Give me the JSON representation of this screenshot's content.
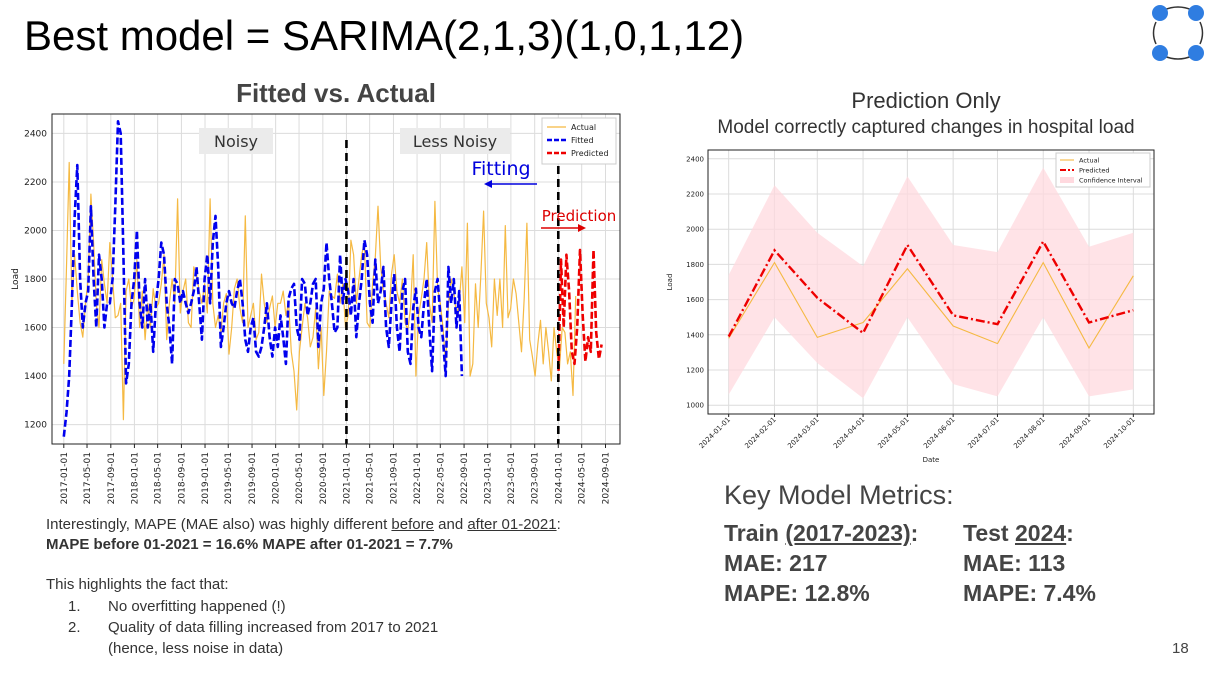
{
  "slide": {
    "title": "Best model = SARIMA(2,1,3)(1,0,1,12)",
    "page_number": "18"
  },
  "left_chart": {
    "title": "Fitted vs. Actual",
    "ylabel": "Load",
    "legend": [
      "Actual",
      "Fitted",
      "Predicted"
    ],
    "annotations": {
      "noisy": "Noisy",
      "less_noisy": "Less Noisy",
      "fitting": "Fitting",
      "prediction": "Prediction"
    }
  },
  "right_chart": {
    "title": "Prediction Only",
    "subtitle": "Model correctly captured changes in hospital load",
    "xlabel": "Date",
    "ylabel": "Load",
    "legend": [
      "Actual",
      "Predicted",
      "Confidence Interval"
    ]
  },
  "notes": {
    "line1_pre": "Interestingly, MAPE (MAE also) was highly different ",
    "line1_before": "before",
    "line1_mid": " and ",
    "line1_after": "after 01-2021",
    "line1_end": ":",
    "line2": "MAPE before 01-2021 = 16.6% MAPE after 01-2021 = 7.7%",
    "line4": "This highlights the fact that:",
    "items": [
      {
        "num": "1.",
        "text": "No overfitting happened (!)"
      },
      {
        "num": "2.",
        "text": "Quality of data filling increased from 2017 to 2021"
      }
    ],
    "item2_cont": "(hence, less noise in data)"
  },
  "metrics": {
    "heading": "Key Model Metrics:",
    "train": {
      "label_pre": "Train ",
      "label_period": "(2017-2023)",
      "label_end": ":",
      "mae": "MAE: 217",
      "mape": "MAPE: 12.8%"
    },
    "test": {
      "label_pre": "Test ",
      "label_period": "2024",
      "label_end": ":",
      "mae": "MAE: 113",
      "mape": "MAPE: 7.4%"
    }
  },
  "chart_data": [
    {
      "id": "fitted_vs_actual",
      "type": "line",
      "title": "Fitted vs. Actual",
      "xlabel": "",
      "ylabel": "Load",
      "ylim": [
        1120,
        2480
      ],
      "x_range": [
        "2016-11-01",
        "2024-11-15"
      ],
      "xticks": [
        "2017-01-01",
        "2017-05-01",
        "2017-09-01",
        "2018-01-01",
        "2018-05-01",
        "2018-09-01",
        "2019-01-01",
        "2019-05-01",
        "2019-09-01",
        "2020-01-01",
        "2020-05-01",
        "2020-09-01",
        "2021-01-01",
        "2021-05-01",
        "2021-09-01",
        "2022-01-01",
        "2022-05-01",
        "2022-09-01",
        "2023-01-01",
        "2023-05-01",
        "2023-09-01",
        "2024-01-01",
        "2024-05-01",
        "2024-09-01"
      ],
      "yticks": [
        1200,
        1400,
        1600,
        1800,
        2000,
        2200,
        2400
      ],
      "grid": true,
      "legend_position": "top-right",
      "vertical_lines": [
        "2021-01-01",
        "2024-01-01"
      ],
      "series": [
        {
          "name": "Actual",
          "color": "#f5b942",
          "style": "solid",
          "start": "2017-01-01",
          "step_days": 14,
          "values": [
            1450,
            1850,
            2280,
            1700,
            1900,
            1750,
            1620,
            1560,
            1700,
            1800,
            2150,
            1950,
            1700,
            1600,
            1880,
            1780,
            1700,
            1950,
            1800,
            1640,
            1650,
            1700,
            1220,
            1750,
            1800,
            1680,
            1720,
            1880,
            1600,
            1750,
            1550,
            1700,
            1600,
            1760,
            1680,
            1700,
            1780,
            1900,
            1550,
            1700,
            1800,
            1700,
            2130,
            1660,
            1750,
            1800,
            1620,
            1600,
            1850,
            1820,
            1750,
            1700,
            1780,
            1660,
            2130,
            1700,
            1600,
            1650,
            1580,
            1700,
            1740,
            1490,
            1600,
            1760,
            1800,
            1680,
            1620,
            2060,
            1600,
            1650,
            1700,
            1550,
            1580,
            1820,
            1700,
            1620,
            1680,
            1730,
            1600,
            1700,
            1700,
            1750,
            1650,
            1700,
            1500,
            1420,
            1260,
            1500,
            1600,
            1700,
            1640,
            1520,
            1560,
            1680,
            1430,
            1600,
            1320,
            1500,
            1750,
            1730,
            1720,
            1820,
            1700,
            1780,
            1600,
            1650,
            1960,
            1900,
            1700,
            1800,
            1900,
            1950,
            1620,
            1600,
            1780,
            1890,
            2100,
            1850,
            1750,
            1700,
            1640,
            1820,
            1900,
            1750,
            1700,
            1800,
            1620,
            1590,
            1680,
            1900,
            1400,
            1650,
            1720,
            1800,
            1950,
            1700,
            1620,
            2120,
            1760,
            1700,
            1600,
            1450,
            1700,
            1800,
            1750,
            1650,
            1700,
            1850,
            1620,
            2030,
            1400,
            1450,
            1780,
            1600,
            1820,
            2080,
            1700,
            1640,
            1520,
            1800,
            1650,
            1800,
            1600,
            2020,
            1640,
            1680,
            1800,
            1740,
            1620,
            1500,
            1720,
            2030,
            1550,
            1480,
            1400,
            1530,
            1630,
            1450,
            1600,
            1500,
            1380,
            1600,
            1500,
            1430,
            1600,
            1580,
            1450,
            1500,
            1320,
            1730
          ]
        },
        {
          "name": "Fitted",
          "color": "#0000ee",
          "style": "dashed",
          "start": "2017-01-01",
          "step_days": 14,
          "values": [
            1150,
            1250,
            1400,
            1700,
            2050,
            2270,
            1800,
            1600,
            1700,
            1750,
            2100,
            1800,
            1600,
            1900,
            1800,
            1600,
            1700,
            1700,
            1800,
            2100,
            2450,
            2400,
            1900,
            1370,
            1450,
            1700,
            1800,
            2000,
            1700,
            1600,
            1800,
            1600,
            1700,
            1500,
            1700,
            1800,
            1950,
            1900,
            1700,
            1600,
            1450,
            1800,
            1780,
            1700,
            1750,
            1700,
            1660,
            1700,
            1750,
            1850,
            1700,
            1550,
            1800,
            1900,
            1700,
            1950,
            2060,
            1850,
            1520,
            1600,
            1700,
            1750,
            1700,
            1680,
            1750,
            1800,
            1700,
            1550,
            1500,
            1600,
            1640,
            1500,
            1480,
            1520,
            1600,
            1700,
            1560,
            1480,
            1600,
            1520,
            1650,
            1560,
            1450,
            1720,
            1760,
            1780,
            1600,
            1550,
            1800,
            1780,
            1650,
            1700,
            1780,
            1800,
            1520,
            1700,
            1760,
            1950,
            1800,
            1700,
            1580,
            1600,
            1900,
            1700,
            1800,
            1750,
            1650,
            1800,
            1560,
            1700,
            1800,
            1960,
            1900,
            1700,
            1620,
            1880,
            1700,
            1750,
            1850,
            1600,
            1520,
            1700,
            1820,
            1600,
            1500,
            1750,
            1800,
            1500,
            1450,
            1680,
            1760,
            1600,
            1560,
            1700,
            1800,
            1590,
            1420,
            1750,
            1800,
            1650,
            1550,
            1400,
            1850,
            1700,
            1800,
            1600,
            1750,
            1400
          ]
        },
        {
          "name": "Predicted",
          "color": "#ee0000",
          "style": "dashed",
          "start": "2024-01-01",
          "step_days": 14,
          "values": [
            1380,
            1880,
            1600,
            1900,
            1750,
            1500,
            1450,
            1600,
            1920,
            1650,
            1460,
            1560,
            1500,
            1920,
            1580,
            1470,
            1530
          ]
        }
      ]
    },
    {
      "id": "prediction_only",
      "type": "line",
      "title": "Prediction Only",
      "xlabel": "Date",
      "ylabel": "Load",
      "ylim": [
        950,
        2450
      ],
      "x": [
        "2024-01-01",
        "2024-02-01",
        "2024-03-01",
        "2024-04-01",
        "2024-05-01",
        "2024-06-01",
        "2024-07-01",
        "2024-08-01",
        "2024-09-01",
        "2024-10-01"
      ],
      "yticks": [
        1000,
        1200,
        1400,
        1600,
        1800,
        2000,
        2200,
        2400
      ],
      "grid": true,
      "legend_position": "top-right",
      "series": [
        {
          "name": "Actual",
          "color": "#f5b942",
          "style": "solid",
          "values": [
            1380,
            1810,
            1385,
            1470,
            1775,
            1450,
            1350,
            1810,
            1325,
            1735
          ]
        },
        {
          "name": "Predicted",
          "color": "#ee0000",
          "style": "dashdot",
          "values": [
            1390,
            1880,
            1610,
            1410,
            1910,
            1510,
            1460,
            1930,
            1470,
            1540
          ]
        },
        {
          "name": "Confidence Interval",
          "color": "#ffd9df",
          "style": "band",
          "lower": [
            1060,
            1500,
            1240,
            1040,
            1500,
            1120,
            1050,
            1500,
            1050,
            1090
          ],
          "upper": [
            1740,
            2250,
            1980,
            1790,
            2300,
            1910,
            1870,
            2350,
            1900,
            1980
          ]
        }
      ]
    }
  ]
}
